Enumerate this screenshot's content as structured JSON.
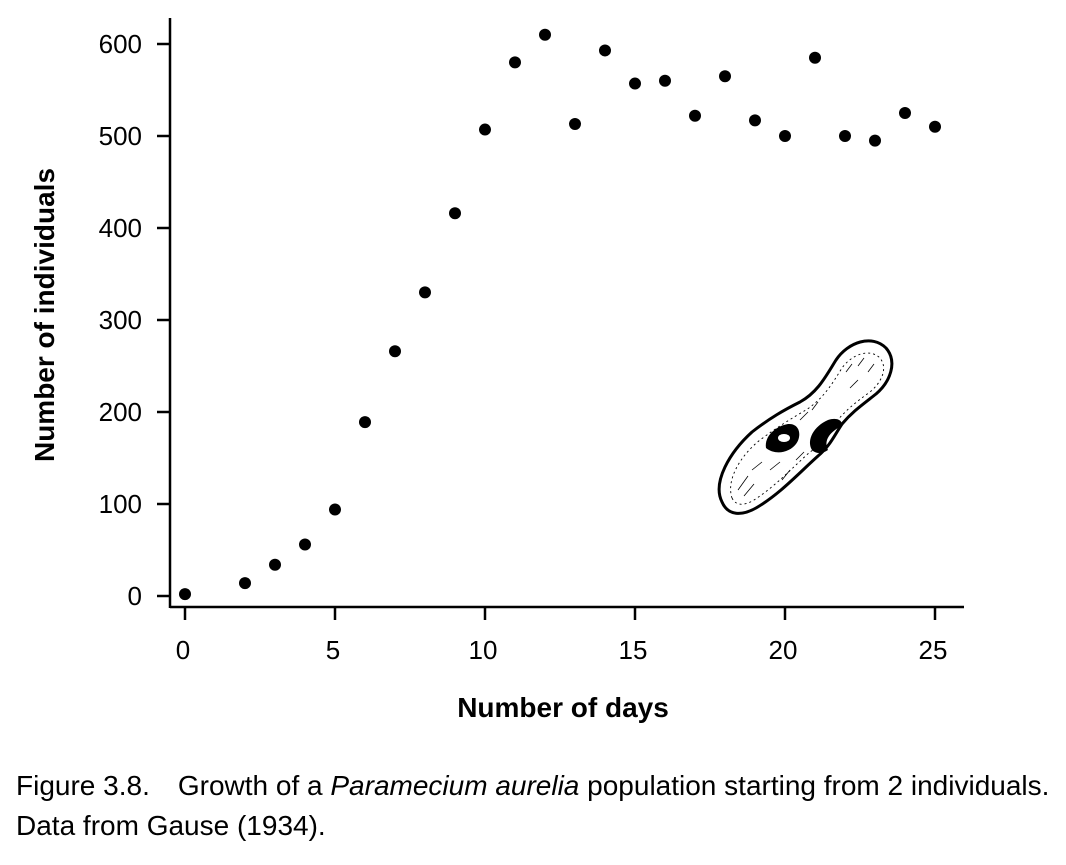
{
  "chart_data": {
    "type": "scatter",
    "xlabel": "Number of days",
    "ylabel": "Number of individuals",
    "xlim": [
      -0.5,
      26
    ],
    "ylim": [
      -12,
      630
    ],
    "xticks": [
      0,
      5,
      10,
      15,
      20,
      25
    ],
    "yticks": [
      0,
      100,
      200,
      300,
      400,
      500,
      600
    ],
    "grid": false,
    "legend": false,
    "marker_color": "#000000",
    "points": [
      {
        "x": 0,
        "y": 2
      },
      {
        "x": 2,
        "y": 14
      },
      {
        "x": 3,
        "y": 34
      },
      {
        "x": 4,
        "y": 56
      },
      {
        "x": 5,
        "y": 94
      },
      {
        "x": 6,
        "y": 189
      },
      {
        "x": 7,
        "y": 266
      },
      {
        "x": 8,
        "y": 330
      },
      {
        "x": 9,
        "y": 416
      },
      {
        "x": 10,
        "y": 507
      },
      {
        "x": 11,
        "y": 580
      },
      {
        "x": 12,
        "y": 610
      },
      {
        "x": 13,
        "y": 513
      },
      {
        "x": 14,
        "y": 593
      },
      {
        "x": 15,
        "y": 557
      },
      {
        "x": 16,
        "y": 560
      },
      {
        "x": 17,
        "y": 522
      },
      {
        "x": 18,
        "y": 565
      },
      {
        "x": 19,
        "y": 517
      },
      {
        "x": 20,
        "y": 500
      },
      {
        "x": 21,
        "y": 585
      },
      {
        "x": 22,
        "y": 500
      },
      {
        "x": 23,
        "y": 495
      },
      {
        "x": 24,
        "y": 525
      },
      {
        "x": 25,
        "y": 510
      }
    ]
  },
  "illustration": {
    "icon": "paramecium-icon"
  },
  "caption": {
    "figure_number": "Figure 3.8.",
    "text_before": "Growth of a ",
    "species": "Paramecium aurelia",
    "text_after": " population starting from 2 individuals. Data from Gause (1934)."
  }
}
